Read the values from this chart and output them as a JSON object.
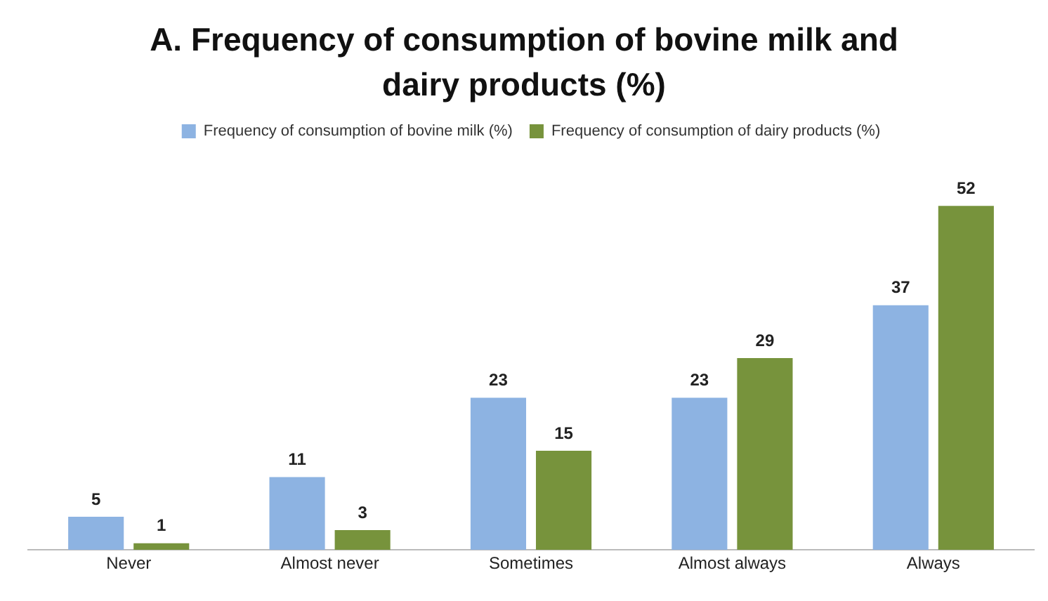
{
  "chart_data": {
    "type": "bar",
    "title": "A. Frequency of consumption of bovine milk  and dairy products (%)",
    "categories": [
      "Never",
      "Almost never",
      "Sometimes",
      "Almost always",
      "Always"
    ],
    "series": [
      {
        "name": "Frequency of consumption of bovine milk (%)",
        "color": "#8db3e2",
        "values": [
          5,
          11,
          23,
          23,
          37
        ]
      },
      {
        "name": "Frequency of consumption of dairy products (%)",
        "color": "#77933c",
        "values": [
          1,
          3,
          15,
          29,
          52
        ]
      }
    ],
    "tick_labels": "x",
    "data_labels": true,
    "legend": "top",
    "grid": false
  }
}
